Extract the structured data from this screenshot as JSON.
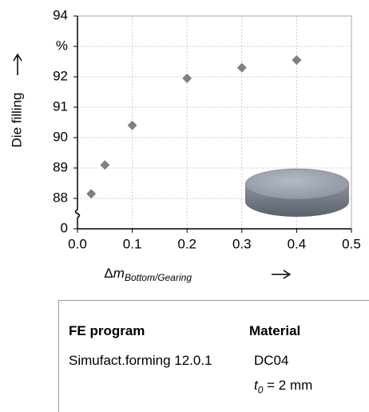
{
  "chart_data": {
    "type": "scatter",
    "y_label": "Die filling",
    "x_label": {
      "prefix": "Δ",
      "symbol": "m",
      "subscript": "Bottom/Gearing"
    },
    "x": [
      0.025,
      0.05,
      0.1,
      0.2,
      0.3,
      0.4
    ],
    "values": [
      88.15,
      89.1,
      90.4,
      91.95,
      92.3,
      92.55
    ],
    "color": "#808080",
    "xlim": [
      0,
      0.5
    ],
    "xticks": [
      {
        "value": 0,
        "label": "0.0"
      },
      0.1,
      0.2,
      0.3,
      0.4,
      0.5
    ],
    "ylim": [
      87,
      94
    ],
    "yticks": [
      88,
      89,
      90,
      91,
      92,
      {
        "value": 93,
        "label": "%"
      },
      94
    ],
    "y_break_tick": 0,
    "grid": true
  },
  "table": {
    "headers": [
      "FE program",
      "Material"
    ],
    "rows": [
      [
        "Simufact.forming 12.0.1",
        "DC04"
      ]
    ],
    "material_note": {
      "symbol": "t",
      "subscript": "0",
      "rest": " = 2 mm"
    }
  }
}
